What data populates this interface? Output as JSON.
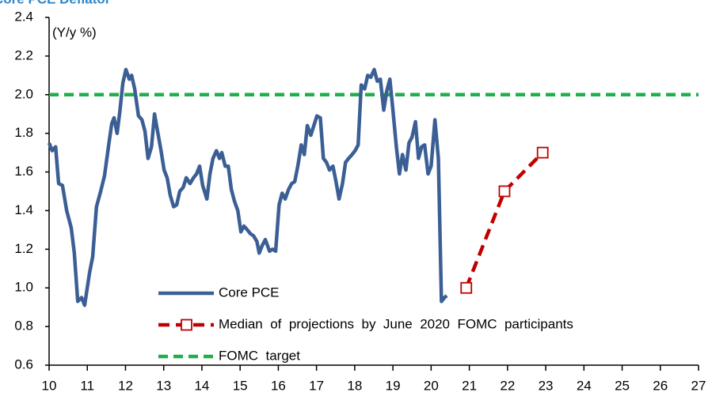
{
  "chart_data": {
    "type": "line",
    "title": "Core PCE Deflator",
    "ylabel": "(Y/y  %)",
    "xlim": [
      10,
      27
    ],
    "xticks": [
      10,
      11,
      12,
      13,
      14,
      15,
      16,
      17,
      18,
      19,
      20,
      21,
      22,
      23,
      24,
      25,
      26,
      27
    ],
    "ylim": [
      0.6,
      2.4
    ],
    "yticks": [
      0.6,
      0.8,
      {
        "value": 1,
        "label": "1.0"
      },
      1.2,
      1.4,
      1.6,
      1.8,
      {
        "value": 2,
        "label": "2.0"
      },
      2.2,
      2.4
    ],
    "series": [
      {
        "name": "Core PCE",
        "color": "#3b5f94",
        "line_style": "solid",
        "marker": false,
        "x": [
          10.0,
          10.08,
          10.17,
          10.25,
          10.35,
          10.46,
          10.58,
          10.66,
          10.75,
          10.85,
          10.93,
          11.06,
          11.14,
          11.24,
          11.35,
          11.45,
          11.56,
          11.64,
          11.7,
          11.78,
          11.85,
          11.93,
          12.01,
          12.1,
          12.16,
          12.24,
          12.34,
          12.43,
          12.51,
          12.59,
          12.68,
          12.76,
          12.84,
          12.93,
          13.01,
          13.09,
          13.17,
          13.26,
          13.34,
          13.42,
          13.51,
          13.59,
          13.69,
          13.78,
          13.86,
          13.94,
          14.02,
          14.13,
          14.21,
          14.29,
          14.38,
          14.46,
          14.52,
          14.61,
          14.69,
          14.77,
          14.85,
          14.94,
          15.02,
          15.1,
          15.19,
          15.27,
          15.35,
          15.44,
          15.5,
          15.58,
          15.66,
          15.77,
          15.85,
          15.93,
          16.02,
          16.1,
          16.18,
          16.27,
          16.35,
          16.43,
          16.51,
          16.6,
          16.68,
          16.76,
          16.85,
          16.93,
          17.01,
          17.1,
          17.18,
          17.26,
          17.34,
          17.43,
          17.51,
          17.59,
          17.68,
          17.76,
          17.84,
          17.93,
          18.01,
          18.09,
          18.17,
          18.26,
          18.34,
          18.42,
          18.51,
          18.59,
          18.67,
          18.76,
          18.84,
          18.92,
          19.0,
          19.09,
          19.17,
          19.25,
          19.34,
          19.42,
          19.5,
          19.59,
          19.67,
          19.75,
          19.83,
          19.92,
          20.0,
          20.1,
          20.19,
          20.27,
          20.35,
          20.41
        ],
        "values": [
          1.75,
          1.71,
          1.73,
          1.54,
          1.53,
          1.4,
          1.31,
          1.18,
          0.93,
          0.95,
          0.91,
          1.08,
          1.16,
          1.42,
          1.5,
          1.58,
          1.74,
          1.85,
          1.88,
          1.8,
          1.91,
          2.06,
          2.13,
          2.08,
          2.1,
          2.03,
          1.89,
          1.87,
          1.81,
          1.67,
          1.73,
          1.9,
          1.81,
          1.71,
          1.61,
          1.57,
          1.48,
          1.42,
          1.43,
          1.5,
          1.52,
          1.57,
          1.54,
          1.57,
          1.59,
          1.63,
          1.53,
          1.46,
          1.59,
          1.67,
          1.71,
          1.67,
          1.7,
          1.63,
          1.63,
          1.51,
          1.45,
          1.4,
          1.29,
          1.32,
          1.3,
          1.28,
          1.27,
          1.24,
          1.18,
          1.22,
          1.25,
          1.19,
          1.2,
          1.19,
          1.43,
          1.49,
          1.46,
          1.51,
          1.54,
          1.55,
          1.63,
          1.74,
          1.69,
          1.84,
          1.79,
          1.84,
          1.89,
          1.88,
          1.67,
          1.65,
          1.61,
          1.63,
          1.55,
          1.46,
          1.54,
          1.65,
          1.67,
          1.69,
          1.71,
          1.74,
          2.05,
          2.03,
          2.1,
          2.09,
          2.13,
          2.07,
          2.08,
          1.92,
          2.02,
          2.08,
          1.92,
          1.73,
          1.59,
          1.69,
          1.61,
          1.75,
          1.78,
          1.86,
          1.67,
          1.73,
          1.74,
          1.59,
          1.63,
          1.87,
          1.67,
          0.93,
          0.95,
          0.96
        ]
      },
      {
        "name": "Median  of  projections  by  June  2020  FOMC  participants",
        "color": "#c00000",
        "line_style": "dashed",
        "marker": true,
        "x": [
          20.92,
          21.92,
          22.92
        ],
        "values": [
          1.0,
          1.5,
          1.7
        ]
      },
      {
        "name": "FOMC  target",
        "color": "#1fb04b",
        "line_style": "dashed",
        "marker": false,
        "x": [
          10,
          27
        ],
        "values": [
          2.0,
          2.0
        ]
      }
    ]
  }
}
